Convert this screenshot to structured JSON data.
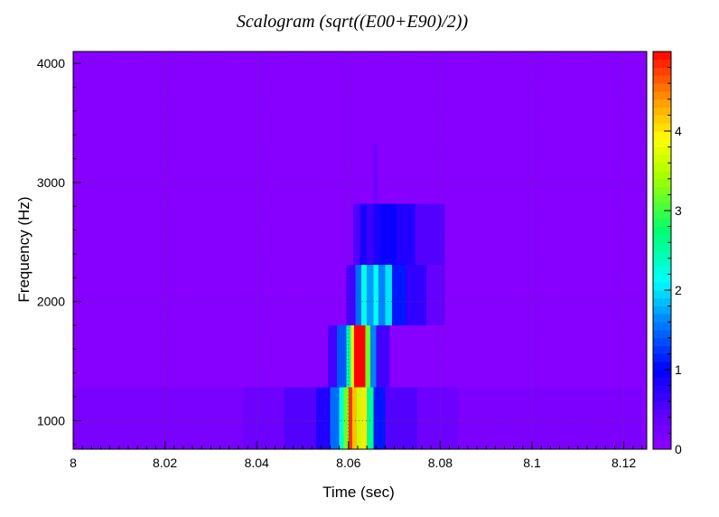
{
  "chart_data": {
    "type": "heatmap",
    "title": "Scalogram (sqrt((E00+E90)/2))",
    "xlabel": "Time (sec)",
    "ylabel": "Frequency (Hz)",
    "xlim": [
      8.0,
      8.125
    ],
    "ylim": [
      760,
      4100
    ],
    "x_ticks": [
      8,
      8.02,
      8.04,
      8.06,
      8.08,
      8.1,
      8.12
    ],
    "x_tick_labels": [
      "8",
      "8.02",
      "8.04",
      "8.06",
      "8.08",
      "8.1",
      "8.12"
    ],
    "y_ticks": [
      1000,
      2000,
      3000,
      4000
    ],
    "y_tick_labels": [
      "1000",
      "2000",
      "3000",
      "4000"
    ],
    "grid": true,
    "background_value": 0.05,
    "colorbar": {
      "range": [
        0,
        5
      ],
      "ticks": [
        0,
        1,
        2,
        3,
        4
      ],
      "tick_labels": [
        "0",
        "1",
        "2",
        "3",
        "4"
      ],
      "colormap": "rainbow (violet to red)"
    },
    "bands": [
      {
        "f_low": 760,
        "f_high": 1280,
        "cells": [
          {
            "t0": 8.0,
            "t1": 8.037,
            "v": 0.18
          },
          {
            "t0": 8.037,
            "t1": 8.046,
            "v": 0.3
          },
          {
            "t0": 8.046,
            "t1": 8.053,
            "v": 0.5
          },
          {
            "t0": 8.053,
            "t1": 8.056,
            "v": 0.8
          },
          {
            "t0": 8.056,
            "t1": 8.058,
            "v": 1.5
          },
          {
            "t0": 8.058,
            "t1": 8.059,
            "v": 2.3
          },
          {
            "t0": 8.059,
            "t1": 8.06,
            "v": 3.2
          },
          {
            "t0": 8.06,
            "t1": 8.0608,
            "v": 4.8
          },
          {
            "t0": 8.0608,
            "t1": 8.0618,
            "v": 4.2
          },
          {
            "t0": 8.0618,
            "t1": 8.0628,
            "v": 3.6
          },
          {
            "t0": 8.0628,
            "t1": 8.064,
            "v": 4.0
          },
          {
            "t0": 8.064,
            "t1": 8.0655,
            "v": 2.6
          },
          {
            "t0": 8.0655,
            "t1": 8.068,
            "v": 1.1
          },
          {
            "t0": 8.068,
            "t1": 8.075,
            "v": 0.5
          },
          {
            "t0": 8.075,
            "t1": 8.084,
            "v": 0.3
          },
          {
            "t0": 8.084,
            "t1": 8.124,
            "v": 0.15
          }
        ]
      },
      {
        "f_low": 1280,
        "f_high": 1800,
        "cells": [
          {
            "t0": 8.0555,
            "t1": 8.0575,
            "v": 0.6
          },
          {
            "t0": 8.0575,
            "t1": 8.0595,
            "v": 1.4
          },
          {
            "t0": 8.0595,
            "t1": 8.0605,
            "v": 2.5
          },
          {
            "t0": 8.0605,
            "t1": 8.0612,
            "v": 4.0
          },
          {
            "t0": 8.0612,
            "t1": 8.0637,
            "v": 5.0
          },
          {
            "t0": 8.0637,
            "t1": 8.0648,
            "v": 3.2
          },
          {
            "t0": 8.0648,
            "t1": 8.066,
            "v": 1.6
          },
          {
            "t0": 8.066,
            "t1": 8.069,
            "v": 0.6
          }
        ]
      },
      {
        "f_low": 1800,
        "f_high": 2310,
        "cells": [
          {
            "t0": 8.0595,
            "t1": 8.0615,
            "v": 0.6
          },
          {
            "t0": 8.0615,
            "t1": 8.0628,
            "v": 1.5
          },
          {
            "t0": 8.0628,
            "t1": 8.064,
            "v": 2.2
          },
          {
            "t0": 8.064,
            "t1": 8.0655,
            "v": 1.7
          },
          {
            "t0": 8.0655,
            "t1": 8.0665,
            "v": 2.1
          },
          {
            "t0": 8.0665,
            "t1": 8.068,
            "v": 1.6
          },
          {
            "t0": 8.068,
            "t1": 8.0695,
            "v": 2.0
          },
          {
            "t0": 8.0695,
            "t1": 8.0725,
            "v": 1.1
          },
          {
            "t0": 8.0725,
            "t1": 8.077,
            "v": 0.7
          },
          {
            "t0": 8.077,
            "t1": 8.081,
            "v": 0.4
          }
        ]
      },
      {
        "f_low": 2310,
        "f_high": 2820,
        "cells": [
          {
            "t0": 8.061,
            "t1": 8.0625,
            "v": 0.5
          },
          {
            "t0": 8.0625,
            "t1": 8.064,
            "v": 0.85
          },
          {
            "t0": 8.064,
            "t1": 8.0655,
            "v": 0.65
          },
          {
            "t0": 8.0655,
            "t1": 8.067,
            "v": 0.85
          },
          {
            "t0": 8.067,
            "t1": 8.0705,
            "v": 0.95
          },
          {
            "t0": 8.0705,
            "t1": 8.0745,
            "v": 0.8
          },
          {
            "t0": 8.0745,
            "t1": 8.081,
            "v": 0.5
          }
        ]
      },
      {
        "f_low": 2820,
        "f_high": 3320,
        "cells": [
          {
            "t0": 8.0655,
            "t1": 8.0663,
            "v": 0.3
          }
        ]
      }
    ]
  }
}
